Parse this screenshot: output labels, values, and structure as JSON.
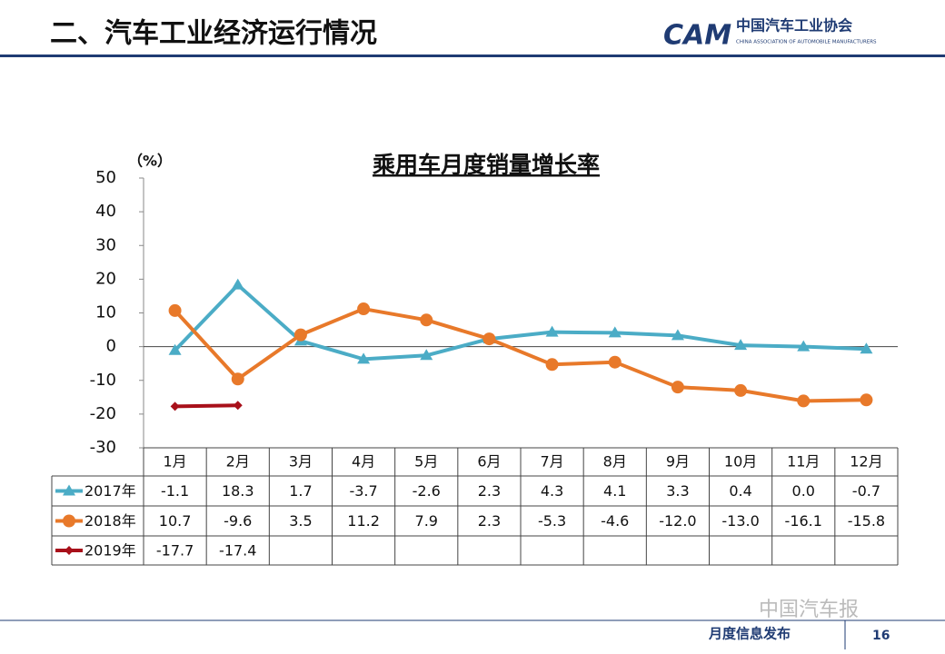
{
  "header": {
    "title": "二、汽车工业经济运行情况"
  },
  "logo": {
    "mark": "CAM",
    "name": "中国汽车工业协会",
    "english": "CHINA ASSOCIATION OF AUTOMOBILE MANUFACTURERS"
  },
  "footer": {
    "label": "月度信息发布",
    "page": "16",
    "watermark": "中国汽车报"
  },
  "chart_data": {
    "type": "line",
    "title": "乘用车月度销量增长率",
    "y_unit": "（%）",
    "categories": [
      "1月",
      "2月",
      "3月",
      "4月",
      "5月",
      "6月",
      "7月",
      "8月",
      "9月",
      "10月",
      "11月",
      "12月"
    ],
    "ylim": [
      -30,
      50
    ],
    "yticks": [
      50,
      40,
      30,
      20,
      10,
      0,
      -10,
      -20,
      -30
    ],
    "series": [
      {
        "name": "2017年",
        "color": "#4bacc6",
        "marker": "triangle",
        "values": [
          -1.1,
          18.3,
          1.7,
          -3.7,
          -2.6,
          2.3,
          4.3,
          4.1,
          3.3,
          0.4,
          0.0,
          -0.7
        ],
        "value_labels": [
          "-1.1",
          "18.3",
          "1.7",
          "-3.7",
          "-2.6",
          "2.3",
          "4.3",
          "4.1",
          "3.3",
          "0.4",
          "0.0",
          "-0.7"
        ]
      },
      {
        "name": "2018年",
        "color": "#e8792a",
        "marker": "circle",
        "values": [
          10.7,
          -9.6,
          3.5,
          11.2,
          7.9,
          2.3,
          -5.3,
          -4.6,
          -12.0,
          -13.0,
          -16.1,
          -15.8
        ],
        "value_labels": [
          "10.7",
          "-9.6",
          "3.5",
          "11.2",
          "7.9",
          "2.3",
          "-5.3",
          "-4.6",
          "-12.0",
          "-13.0",
          "-16.1",
          "-15.8"
        ]
      },
      {
        "name": "2019年",
        "color": "#a8101a",
        "marker": "diamond",
        "values": [
          -17.7,
          -17.4,
          null,
          null,
          null,
          null,
          null,
          null,
          null,
          null,
          null,
          null
        ],
        "value_labels": [
          "-17.7",
          "-17.4",
          null,
          null,
          null,
          null,
          null,
          null,
          null,
          null,
          null,
          null
        ]
      }
    ]
  }
}
